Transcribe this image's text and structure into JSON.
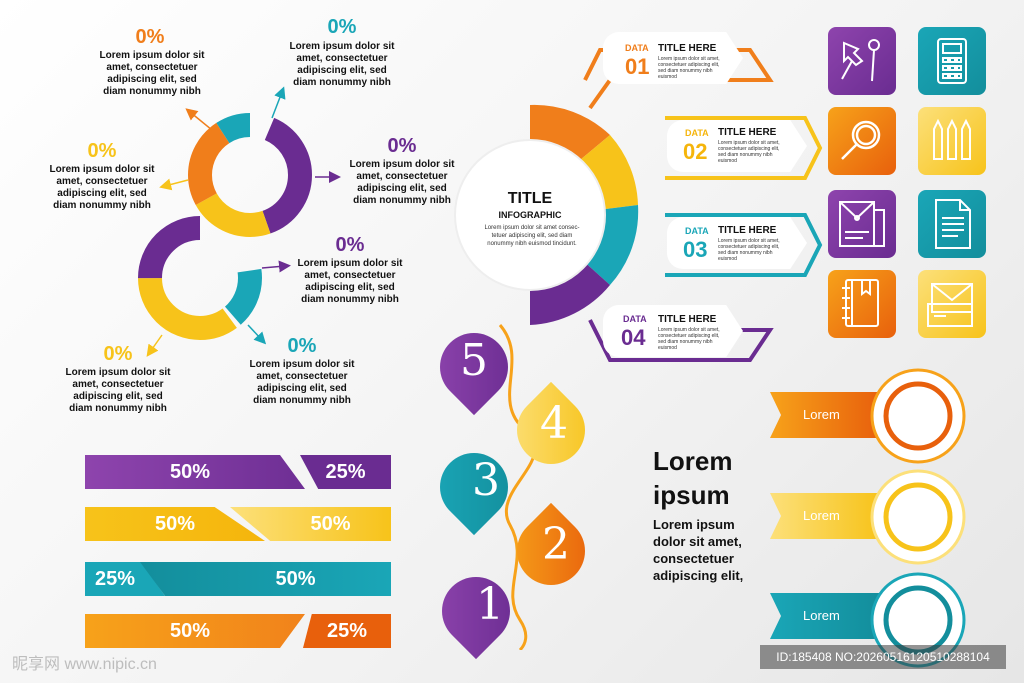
{
  "colors": {
    "purple": "#6a2c91",
    "purple_light": "#8e44ad",
    "orange": "#f07e1b",
    "orange_dark": "#e8600c",
    "yellow": "#f7c31a",
    "teal": "#1aa6b7",
    "teal_dark": "#138e9c"
  },
  "donuts": {
    "labels": [
      {
        "pct": "0%",
        "text": "Lorem ipsum dolor sit amet, consectetuer adipiscing elit, sed diam nonummy nibh",
        "color": "orange"
      },
      {
        "pct": "0%",
        "text": "Lorem ipsum dolor sit amet, consectetuer adipiscing elit, sed diam nonummy nibh",
        "color": "teal"
      },
      {
        "pct": "0%",
        "text": "Lorem ipsum dolor sit amet, consectetuer adipiscing elit, sed diam nonummy nibh",
        "color": "yellow"
      },
      {
        "pct": "0%",
        "text": "Lorem ipsum dolor sit amet, consectetuer adipiscing elit, sed diam nonummy nibh",
        "color": "purple"
      },
      {
        "pct": "0%",
        "text": "Lorem ipsum dolor sit amet, consectetuer adipiscing elit, sed diam nonummy nibh",
        "color": "purple"
      },
      {
        "pct": "0%",
        "text": "Lorem ipsum dolor sit amet, consectetuer adipiscing elit, sed diam nonummy nibh",
        "color": "yellow"
      },
      {
        "pct": "0%",
        "text": "Lorem ipsum dolor sit amet, consectetuer adipiscing elit, sed diam nonummy nibh",
        "color": "teal"
      }
    ]
  },
  "bars": [
    {
      "left": "50%",
      "right": "25%",
      "left_color": "purple",
      "right_color": "purple"
    },
    {
      "left": "50%",
      "right": "50%",
      "left_color": "yellow",
      "right_color": "yellow"
    },
    {
      "left": "25%",
      "right": "50%",
      "left_color": "teal",
      "right_color": "teal"
    },
    {
      "left": "50%",
      "right": "25%",
      "left_color": "orange",
      "right_color": "orange"
    }
  ],
  "hub": {
    "title": "TITLE",
    "subtitle": "INFOGRAPHIC",
    "body": "Lorem ipsum dolor sit amet consec- tetuer adipiscing elit, sed diam nonummy nibh euismod tincidunt.",
    "cards": [
      {
        "data_label": "DATA",
        "num": "01",
        "heading": "TITLE HERE",
        "body": "Lorem ipsum dolor sit amet, consectetuer adipiscing elit, sed diam nonummy nibh euismod",
        "color": "orange"
      },
      {
        "data_label": "DATA",
        "num": "02",
        "heading": "TITLE HERE",
        "body": "Lorem ipsum dolor sit amet, consectetuer adipiscing elit, sed diam nonummy nibh euismod",
        "color": "yellow"
      },
      {
        "data_label": "DATA",
        "num": "03",
        "heading": "TITLE HERE",
        "body": "Lorem ipsum dolor sit amet, consectetuer adipiscing elit, sed diam nonummy nibh euismod",
        "color": "teal"
      },
      {
        "data_label": "DATA",
        "num": "04",
        "heading": "TITLE HERE",
        "body": "Lorem ipsum dolor sit amet, consectetuer adipiscing elit, sed diam nonummy nibh euismod",
        "color": "purple"
      }
    ]
  },
  "icons": [
    {
      "name": "pushpin-icon",
      "color": "purple"
    },
    {
      "name": "calculator-icon",
      "color": "teal"
    },
    {
      "name": "magnifier-icon",
      "color": "orange"
    },
    {
      "name": "pencils-icon",
      "color": "yellow"
    },
    {
      "name": "document-icon",
      "color": "purple"
    },
    {
      "name": "paper-sheet-icon",
      "color": "teal"
    },
    {
      "name": "notebook-icon",
      "color": "orange"
    },
    {
      "name": "envelope-icon",
      "color": "yellow"
    }
  ],
  "steps": [
    {
      "num": "5",
      "color": "purple"
    },
    {
      "num": "4",
      "color": "yellow"
    },
    {
      "num": "3",
      "color": "teal"
    },
    {
      "num": "2",
      "color": "orange"
    },
    {
      "num": "1",
      "color": "purple"
    }
  ],
  "lorem_block": {
    "heading_line1": "Lorem",
    "heading_line2": "ipsum",
    "body": [
      "Lorem ipsum",
      "dolor sit amet,",
      "consectetuer",
      "adipiscing elit,"
    ]
  },
  "ribbons": [
    {
      "label": "Lorem",
      "color": "orange"
    },
    {
      "label": "Lorem",
      "color": "yellow"
    },
    {
      "label": "Lorem",
      "color": "teal"
    }
  ],
  "watermark": {
    "left": "昵享网 www.nipic.cn",
    "right": "ID:185408 NO:20260516120510288104"
  }
}
